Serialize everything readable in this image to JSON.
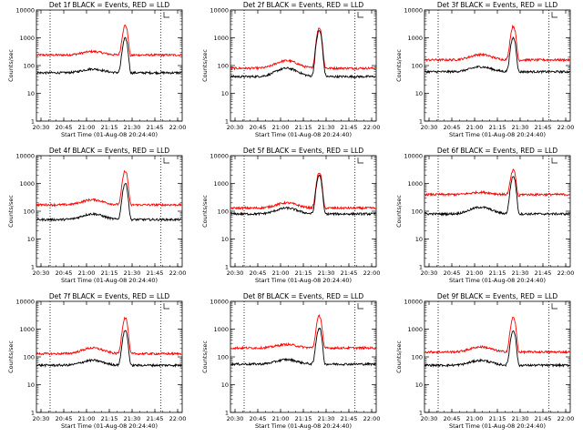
{
  "chart_data": {
    "type": "line",
    "layout": "3x3 grid of small multiples",
    "y_scale": "log",
    "ylim": [
      1,
      10000
    ],
    "y_ticks": [
      "1",
      "10",
      "100",
      "1000",
      "10000"
    ],
    "x_ticks": [
      "20:30",
      "20:45",
      "21:00",
      "21:15",
      "21:30",
      "21:45",
      "22:00"
    ],
    "xlabel": "Start Time (01-Aug-08 20:24:40)",
    "ylabel": "Counts/sec",
    "dotted_vlines": [
      "20:36",
      "21:49"
    ],
    "grid": false,
    "series_colors": {
      "events": "#000000",
      "lld": "#ff0000"
    },
    "panels": [
      {
        "title": "Det 1f  BLACK = Events,  RED = LLD",
        "events": {
          "base": 55,
          "hump": 75,
          "peak": 950
        },
        "lld": {
          "base": 240,
          "hump": 320,
          "peak": 2800
        }
      },
      {
        "title": "Det 2f  BLACK = Events,  RED = LLD",
        "events": {
          "base": 40,
          "hump": 80,
          "peak": 1800
        },
        "lld": {
          "base": 80,
          "hump": 150,
          "peak": 2300
        }
      },
      {
        "title": "Det 3f  BLACK = Events,  RED = LLD",
        "events": {
          "base": 60,
          "hump": 90,
          "peak": 1000
        },
        "lld": {
          "base": 160,
          "hump": 250,
          "peak": 2600
        }
      },
      {
        "title": "Det 4f  BLACK = Events,  RED = LLD",
        "events": {
          "base": 50,
          "hump": 80,
          "peak": 1000
        },
        "lld": {
          "base": 170,
          "hump": 260,
          "peak": 2800
        }
      },
      {
        "title": "Det 5f  BLACK = Events,  RED = LLD",
        "events": {
          "base": 80,
          "hump": 130,
          "peak": 2000
        },
        "lld": {
          "base": 130,
          "hump": 200,
          "peak": 2500
        }
      },
      {
        "title": "Det 6f  BLACK = Events,  RED = LLD",
        "events": {
          "base": 80,
          "hump": 140,
          "peak": 1800
        },
        "lld": {
          "base": 400,
          "hump": 480,
          "peak": 3000
        }
      },
      {
        "title": "Det 7f  BLACK = Events,  RED = LLD",
        "events": {
          "base": 50,
          "hump": 75,
          "peak": 900
        },
        "lld": {
          "base": 130,
          "hump": 210,
          "peak": 2600
        }
      },
      {
        "title": "Det 8f  BLACK = Events,  RED = LLD",
        "events": {
          "base": 55,
          "hump": 80,
          "peak": 1100
        },
        "lld": {
          "base": 210,
          "hump": 280,
          "peak": 3000
        }
      },
      {
        "title": "Det 9f  BLACK = Events,  RED = LLD",
        "events": {
          "base": 50,
          "hump": 75,
          "peak": 900
        },
        "lld": {
          "base": 150,
          "hump": 230,
          "peak": 2600
        }
      }
    ]
  }
}
